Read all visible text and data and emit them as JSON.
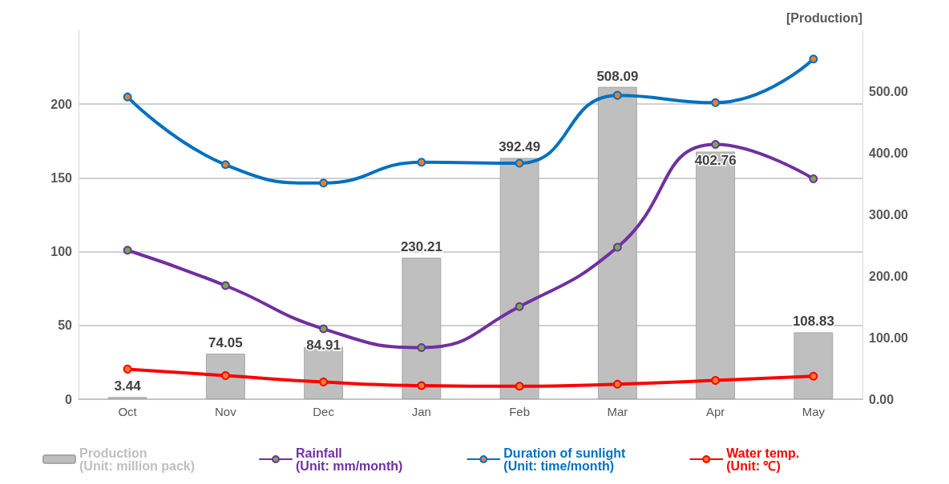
{
  "chart_data": {
    "type": "bar",
    "categories": [
      "Oct",
      "Nov",
      "Dec",
      "Jan",
      "Feb",
      "Mar",
      "Apr",
      "May"
    ],
    "y2label": "[Production]",
    "ylim": [
      0,
      250
    ],
    "yticks": [
      0,
      50,
      100,
      150,
      200
    ],
    "y2lim": [
      0,
      600
    ],
    "y2ticks": [
      {
        "value": 0,
        "label": "0.00"
      },
      {
        "value": 100,
        "label": "100.00"
      },
      {
        "value": 200,
        "label": "200.00"
      },
      {
        "value": 300,
        "label": "300.00"
      },
      {
        "value": 400,
        "label": "400.00"
      },
      {
        "value": 500,
        "label": "500.00"
      }
    ],
    "grid": "y",
    "legend": "bottom",
    "marker": "circle",
    "line_style": "solid",
    "series": [
      {
        "name": "Production\n(Unit: million pack)",
        "type": "bar",
        "axis": "y2",
        "color": "#bfbfbf",
        "values": [
          3.44,
          74.05,
          84.91,
          230.21,
          392.49,
          508.09,
          402.76,
          108.83
        ],
        "data_labels": true
      },
      {
        "name": "Rainfall\n(Unit: mm/month)",
        "type": "line",
        "color": "#7030a0",
        "values": [
          101,
          77,
          47.7,
          35,
          62.8,
          103,
          172.7,
          149.4
        ]
      },
      {
        "name": "Duration of sunlight\n(Unit: time/month)",
        "type": "line",
        "color": "#0070c0",
        "values": [
          204.9,
          159,
          146.5,
          160.6,
          160,
          206,
          201,
          230.6
        ]
      },
      {
        "name": "Water temp.\n(Unit: ℃)",
        "type": "line",
        "color": "#ff0000",
        "values": [
          20.4,
          16,
          11.7,
          9.2,
          8.8,
          10.2,
          12.7,
          15.6
        ]
      }
    ]
  }
}
